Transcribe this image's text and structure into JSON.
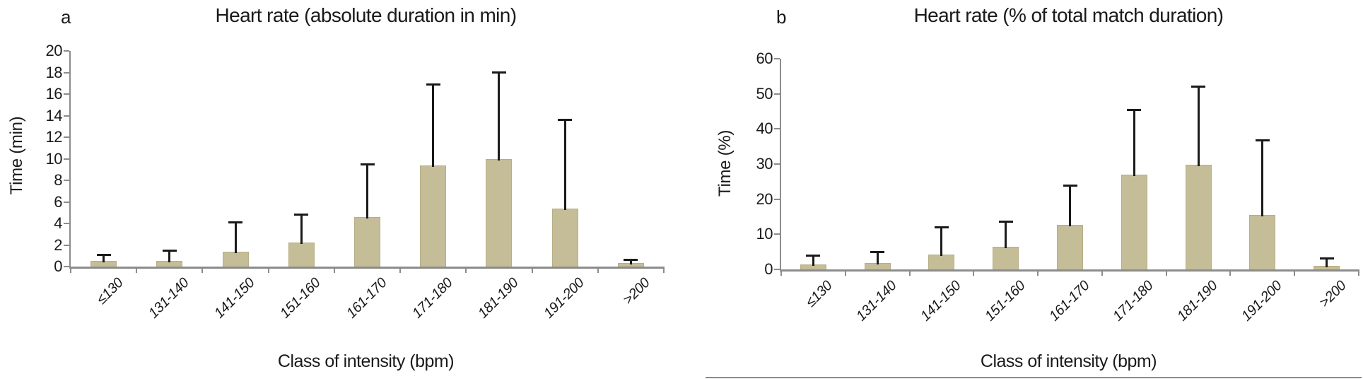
{
  "colors": {
    "bar_fill": "#C4BD97",
    "bar_border": "#B6AE84",
    "axis": "#8C8C8C",
    "error_bar": "#1A1A1A",
    "text": "#1A1A1A"
  },
  "chart_data": [
    {
      "type": "bar",
      "panel_label": "a",
      "title": "Heart rate (absolute duration in min)",
      "xlabel": "Class of intensity (bpm)",
      "ylabel": "Time (min)",
      "categories": [
        "≤130",
        "131-140",
        "141-150",
        "151-160",
        "161-170",
        "171-180",
        "181-190",
        "191-200",
        ">200"
      ],
      "values": [
        0.5,
        0.5,
        1.4,
        2.2,
        4.6,
        9.4,
        10.0,
        5.4,
        0.3
      ],
      "error_upper": [
        1.2,
        1.6,
        4.2,
        4.9,
        9.6,
        17.0,
        18.1,
        13.7,
        0.7
      ],
      "ylim": [
        0,
        20
      ],
      "yticks": [
        0,
        2,
        4,
        6,
        8,
        10,
        12,
        14,
        16,
        18,
        20
      ],
      "grid": false,
      "legend": false
    },
    {
      "type": "bar",
      "panel_label": "b",
      "title": "Heart rate (% of total match duration)",
      "xlabel": "Class of intensity (bpm)",
      "ylabel": "Time (%)",
      "categories": [
        "≤130",
        "131-140",
        "141-150",
        "151-160",
        "161-170",
        "171-180",
        "181-190",
        "191-200",
        ">200"
      ],
      "values": [
        1.5,
        1.8,
        4.2,
        6.5,
        12.7,
        27.0,
        29.8,
        15.5,
        1.0
      ],
      "error_upper": [
        4.3,
        5.2,
        12.2,
        13.8,
        24.2,
        45.8,
        52.3,
        37.0,
        3.5
      ],
      "ylim": [
        0,
        60
      ],
      "yticks": [
        0,
        10,
        20,
        30,
        40,
        50,
        60
      ],
      "grid": false,
      "legend": false
    }
  ]
}
